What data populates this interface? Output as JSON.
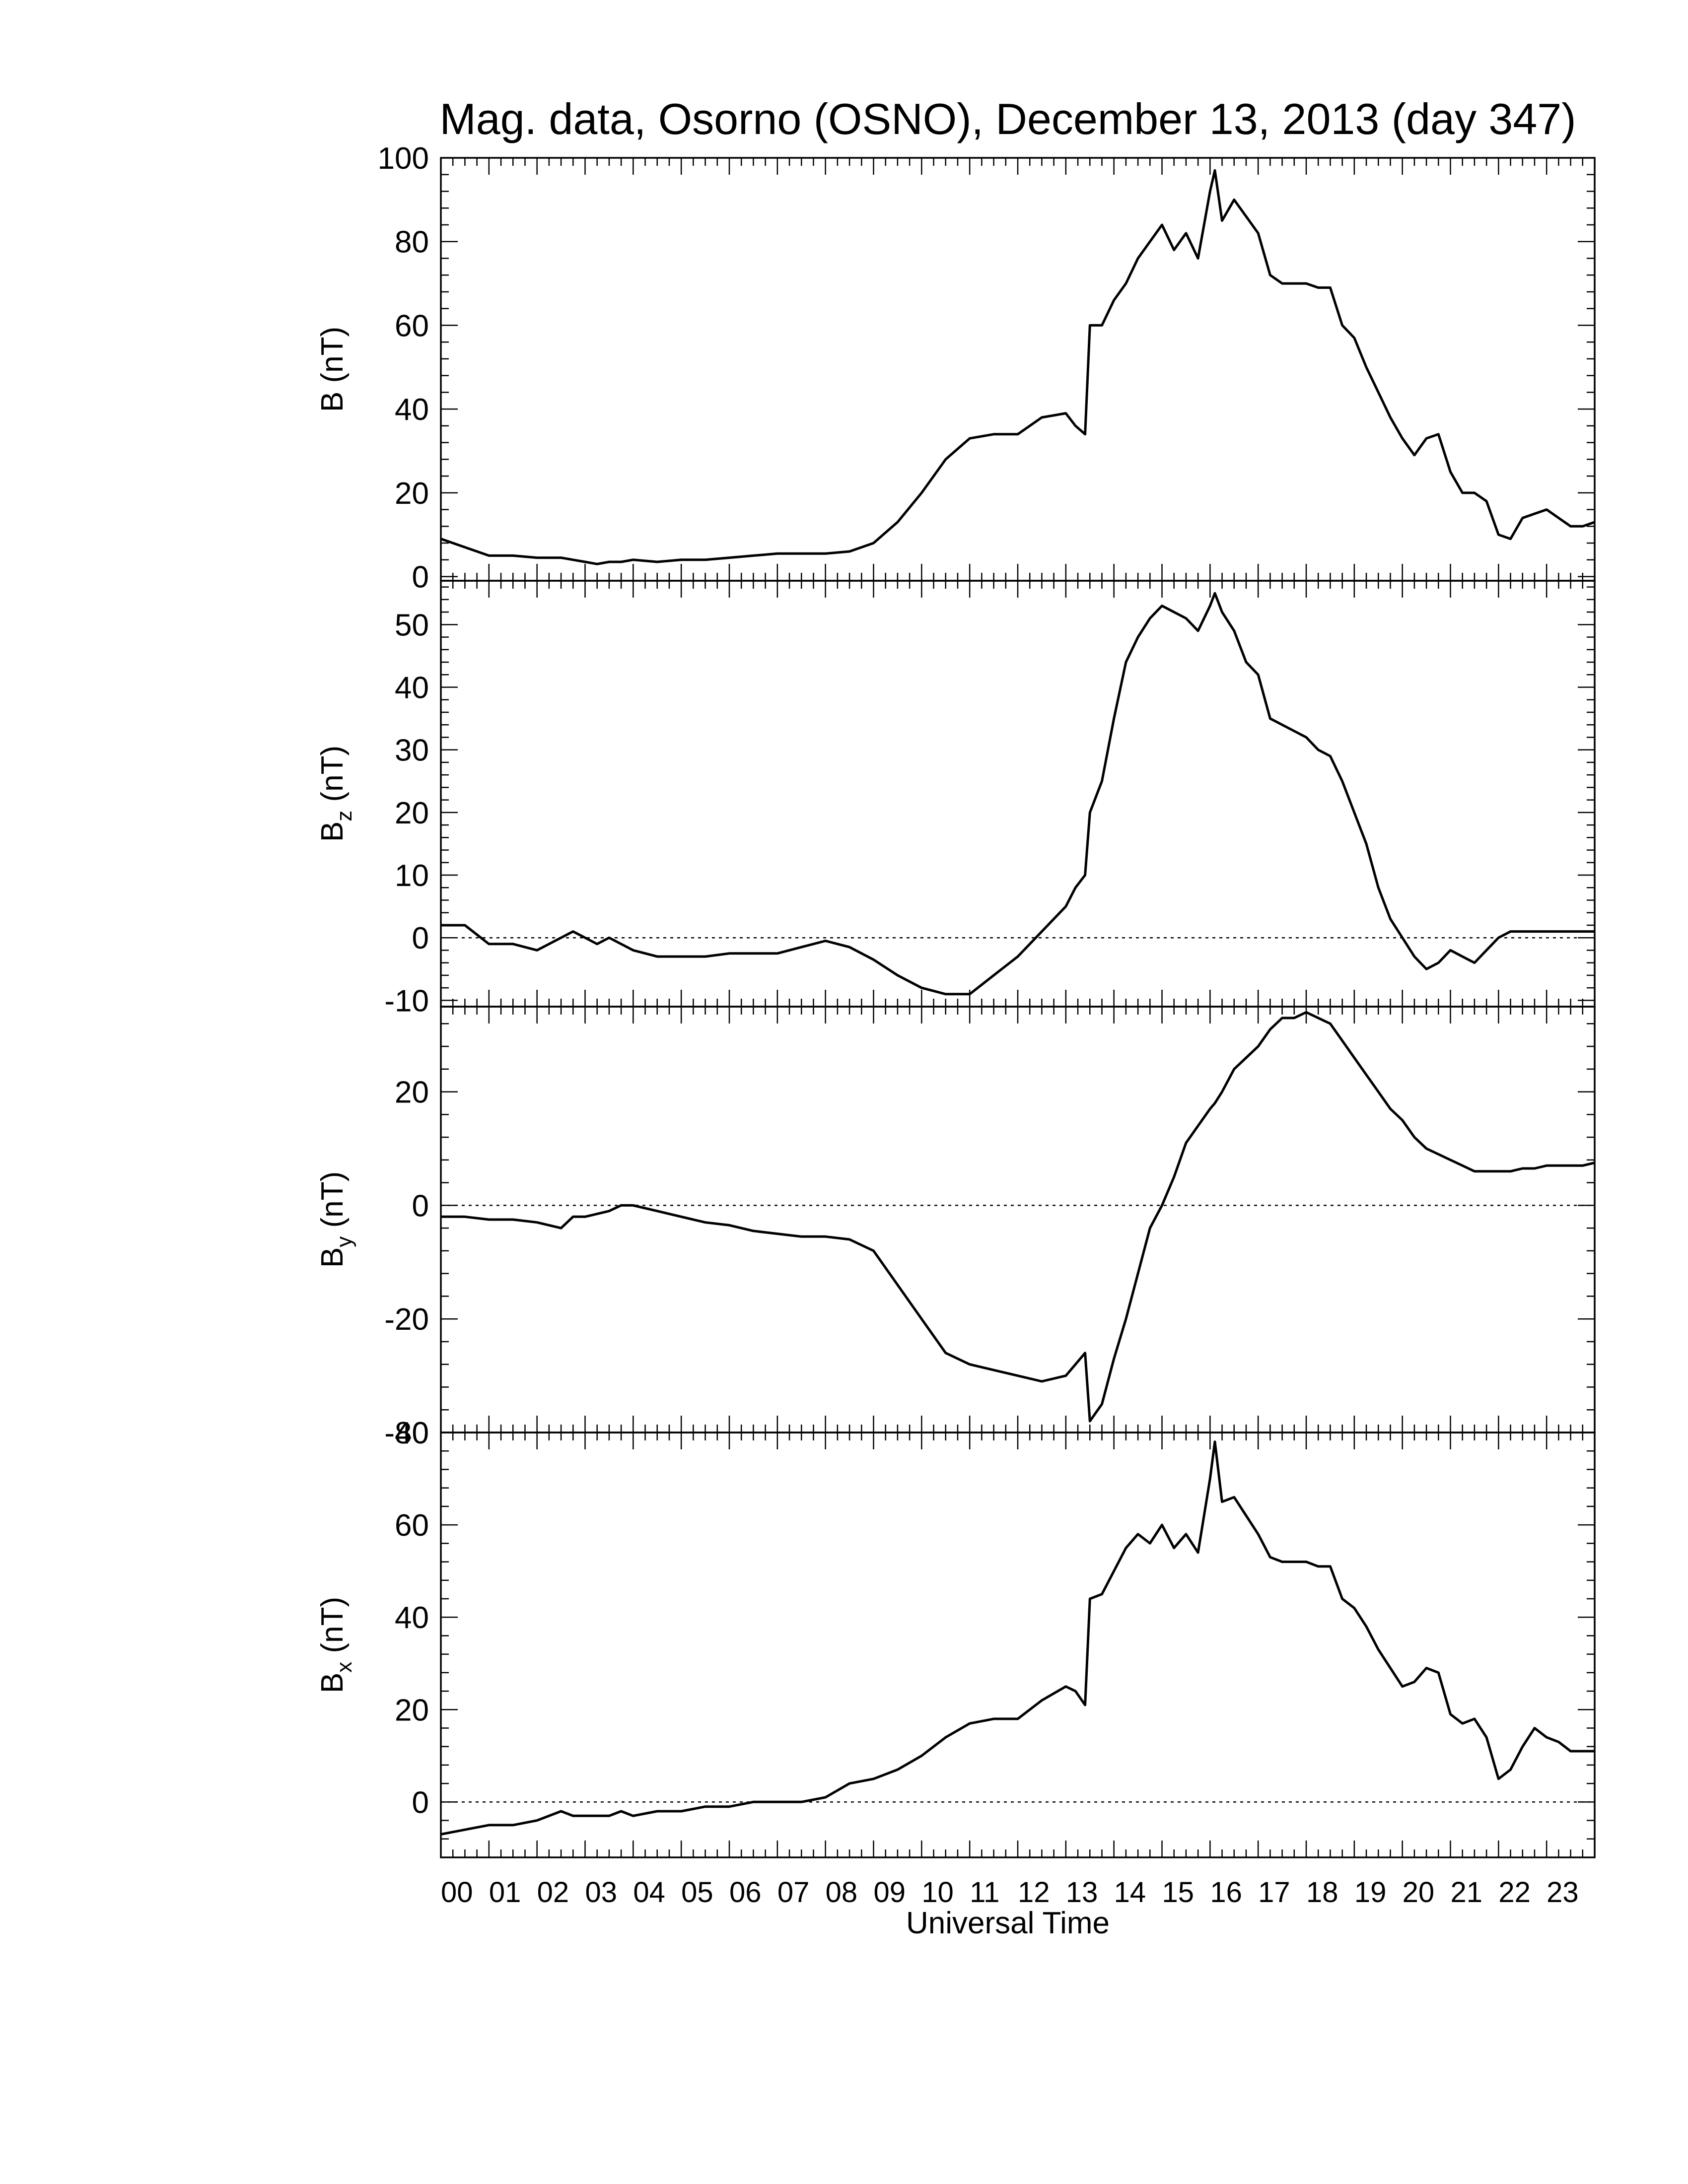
{
  "chart_data": {
    "type": "line",
    "title": "Mag. data, Osorno (OSNO), December 13, 2013 (day 347)",
    "xlabel": "Universal Time",
    "xlim": [
      0,
      24
    ],
    "x_tick_labels": [
      "00",
      "01",
      "02",
      "03",
      "04",
      "05",
      "06",
      "07",
      "08",
      "09",
      "10",
      "11",
      "12",
      "13",
      "14",
      "15",
      "16",
      "17",
      "18",
      "19",
      "20",
      "21",
      "22",
      "23"
    ],
    "x_hours": [
      0,
      0.5,
      1,
      1.5,
      2,
      2.5,
      2.75,
      3,
      3.25,
      3.5,
      3.75,
      4,
      4.5,
      5,
      5.5,
      6,
      6.5,
      7,
      7.5,
      8,
      8.5,
      9,
      9.5,
      10,
      10.5,
      11,
      11.5,
      12,
      12.5,
      13,
      13.2,
      13.4,
      13.5,
      13.75,
      14,
      14.25,
      14.5,
      14.75,
      15,
      15.25,
      15.5,
      15.75,
      16,
      16.1,
      16.25,
      16.5,
      16.75,
      17,
      17.25,
      17.5,
      17.75,
      18,
      18.25,
      18.5,
      18.75,
      19,
      19.25,
      19.5,
      19.75,
      20,
      20.25,
      20.5,
      20.75,
      21,
      21.25,
      21.5,
      21.75,
      22,
      22.25,
      22.5,
      22.75,
      23,
      23.25,
      23.5,
      23.75,
      24
    ],
    "panels": [
      {
        "ylabel_main": "B",
        "ylabel_sub": "",
        "ylabel_unit": "(nT)",
        "ylim": [
          -1,
          100
        ],
        "yticks": [
          0,
          20,
          40,
          60,
          80,
          100
        ],
        "zero_line": false,
        "series": [
          {
            "values": [
              9,
              7,
              5,
              5,
              4.5,
              4.5,
              4,
              3.5,
              3,
              3.5,
              3.5,
              4,
              3.5,
              4,
              4,
              4.5,
              5,
              5.5,
              5.5,
              5.5,
              6,
              8,
              13,
              20,
              28,
              33,
              34,
              34,
              38,
              39,
              36,
              34,
              60,
              60,
              66,
              70,
              76,
              80,
              84,
              78,
              82,
              76,
              92,
              97,
              85,
              90,
              86,
              82,
              72,
              70,
              70,
              70,
              69,
              69,
              60,
              57,
              50,
              44,
              38,
              33,
              29,
              33,
              34,
              25,
              20,
              20,
              18,
              10,
              9,
              14,
              15,
              16,
              14,
              12,
              12,
              13
            ]
          }
        ]
      },
      {
        "ylabel_main": "B",
        "ylabel_sub": "z",
        "ylabel_unit": "(nT)",
        "ylim": [
          -11,
          57
        ],
        "yticks": [
          -10,
          0,
          10,
          20,
          30,
          40,
          50
        ],
        "zero_line": true,
        "series": [
          {
            "values": [
              2,
              2,
              -1,
              -1,
              -2,
              0,
              1,
              0,
              -1,
              0,
              -1,
              -2,
              -3,
              -3,
              -3,
              -2.5,
              -2.5,
              -2.5,
              -1.5,
              -0.5,
              -1.5,
              -3.5,
              -6,
              -8,
              -9,
              -9,
              -6,
              -3,
              1,
              5,
              8,
              10,
              20,
              25,
              35,
              44,
              48,
              51,
              53,
              52,
              51,
              49,
              53,
              55,
              52,
              49,
              44,
              42,
              35,
              34,
              33,
              32,
              30,
              29,
              25,
              20,
              15,
              8,
              3,
              0,
              -3,
              -5,
              -4,
              -2,
              -3,
              -4,
              -2,
              0,
              1,
              1,
              1,
              1,
              1,
              1,
              1,
              1
            ]
          }
        ]
      },
      {
        "ylabel_main": "B",
        "ylabel_sub": "y",
        "ylabel_unit": "(nT)",
        "ylim": [
          -40,
          35
        ],
        "yticks": [
          -40,
          -20,
          0,
          20
        ],
        "zero_line": true,
        "series": [
          {
            "values": [
              -2,
              -2,
              -2.5,
              -2.5,
              -3,
              -4,
              -2,
              -2,
              -1.5,
              -1,
              0,
              0,
              -1,
              -2,
              -3,
              -3.5,
              -4.5,
              -5,
              -5.5,
              -5.5,
              -6,
              -8,
              -14,
              -20,
              -26,
              -28,
              -29,
              -30,
              -31,
              -30,
              -28,
              -26,
              -38,
              -35,
              -27,
              -20,
              -12,
              -4,
              0,
              5,
              11,
              14,
              17,
              18,
              20,
              24,
              26,
              28,
              31,
              33,
              33,
              34,
              33,
              32,
              29,
              26,
              23,
              20,
              17,
              15,
              12,
              10,
              9,
              8,
              7,
              6,
              6,
              6,
              6,
              6.5,
              6.5,
              7,
              7,
              7,
              7,
              7.5
            ]
          }
        ]
      },
      {
        "ylabel_main": "B",
        "ylabel_sub": "x",
        "ylabel_unit": "(nT)",
        "ylim": [
          -12,
          80
        ],
        "yticks": [
          0,
          20,
          40,
          60,
          80
        ],
        "zero_line": true,
        "series": [
          {
            "values": [
              -7,
              -6,
              -5,
              -5,
              -4,
              -2,
              -3,
              -3,
              -3,
              -3,
              -2,
              -3,
              -2,
              -2,
              -1,
              -1,
              0,
              0,
              0,
              1,
              4,
              5,
              7,
              10,
              14,
              17,
              18,
              18,
              22,
              25,
              24,
              21,
              44,
              45,
              50,
              55,
              58,
              56,
              60,
              55,
              58,
              54,
              70,
              78,
              65,
              66,
              62,
              58,
              53,
              52,
              52,
              52,
              51,
              51,
              44,
              42,
              38,
              33,
              29,
              25,
              26,
              29,
              28,
              19,
              17,
              18,
              14,
              5,
              7,
              12,
              16,
              14,
              13,
              11,
              11,
              11
            ]
          }
        ]
      }
    ]
  }
}
